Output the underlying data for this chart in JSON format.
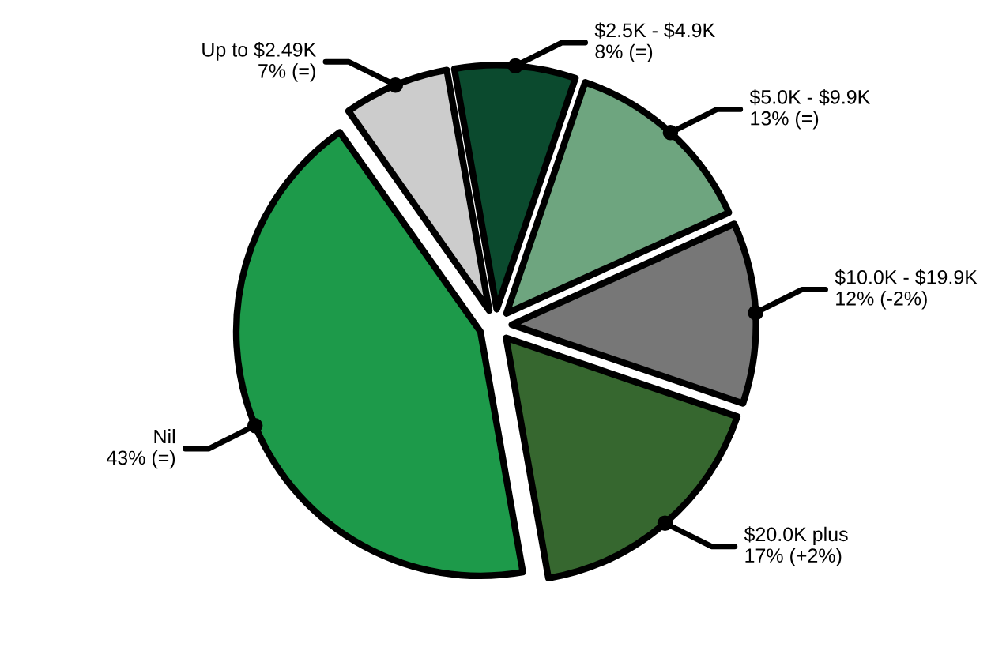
{
  "chart_data": {
    "type": "pie",
    "categories": [
      "$2.5K - $4.9K",
      "$5.0K - $9.9K",
      "$10.0K - $19.9K",
      "$20.0K plus",
      "Nil",
      "Up to $2.49K"
    ],
    "values": [
      8,
      13,
      12,
      17,
      43,
      7
    ],
    "value_labels": [
      "8% (=)",
      "13% (=)",
      "12% (-2%)",
      "17% (+2%)",
      "43% (=)",
      "7% (=)"
    ],
    "colors": [
      "#0b4a2e",
      "#6ea57f",
      "#777777",
      "#36672f",
      "#1d9a4a",
      "#cccccc"
    ],
    "legend": false
  }
}
